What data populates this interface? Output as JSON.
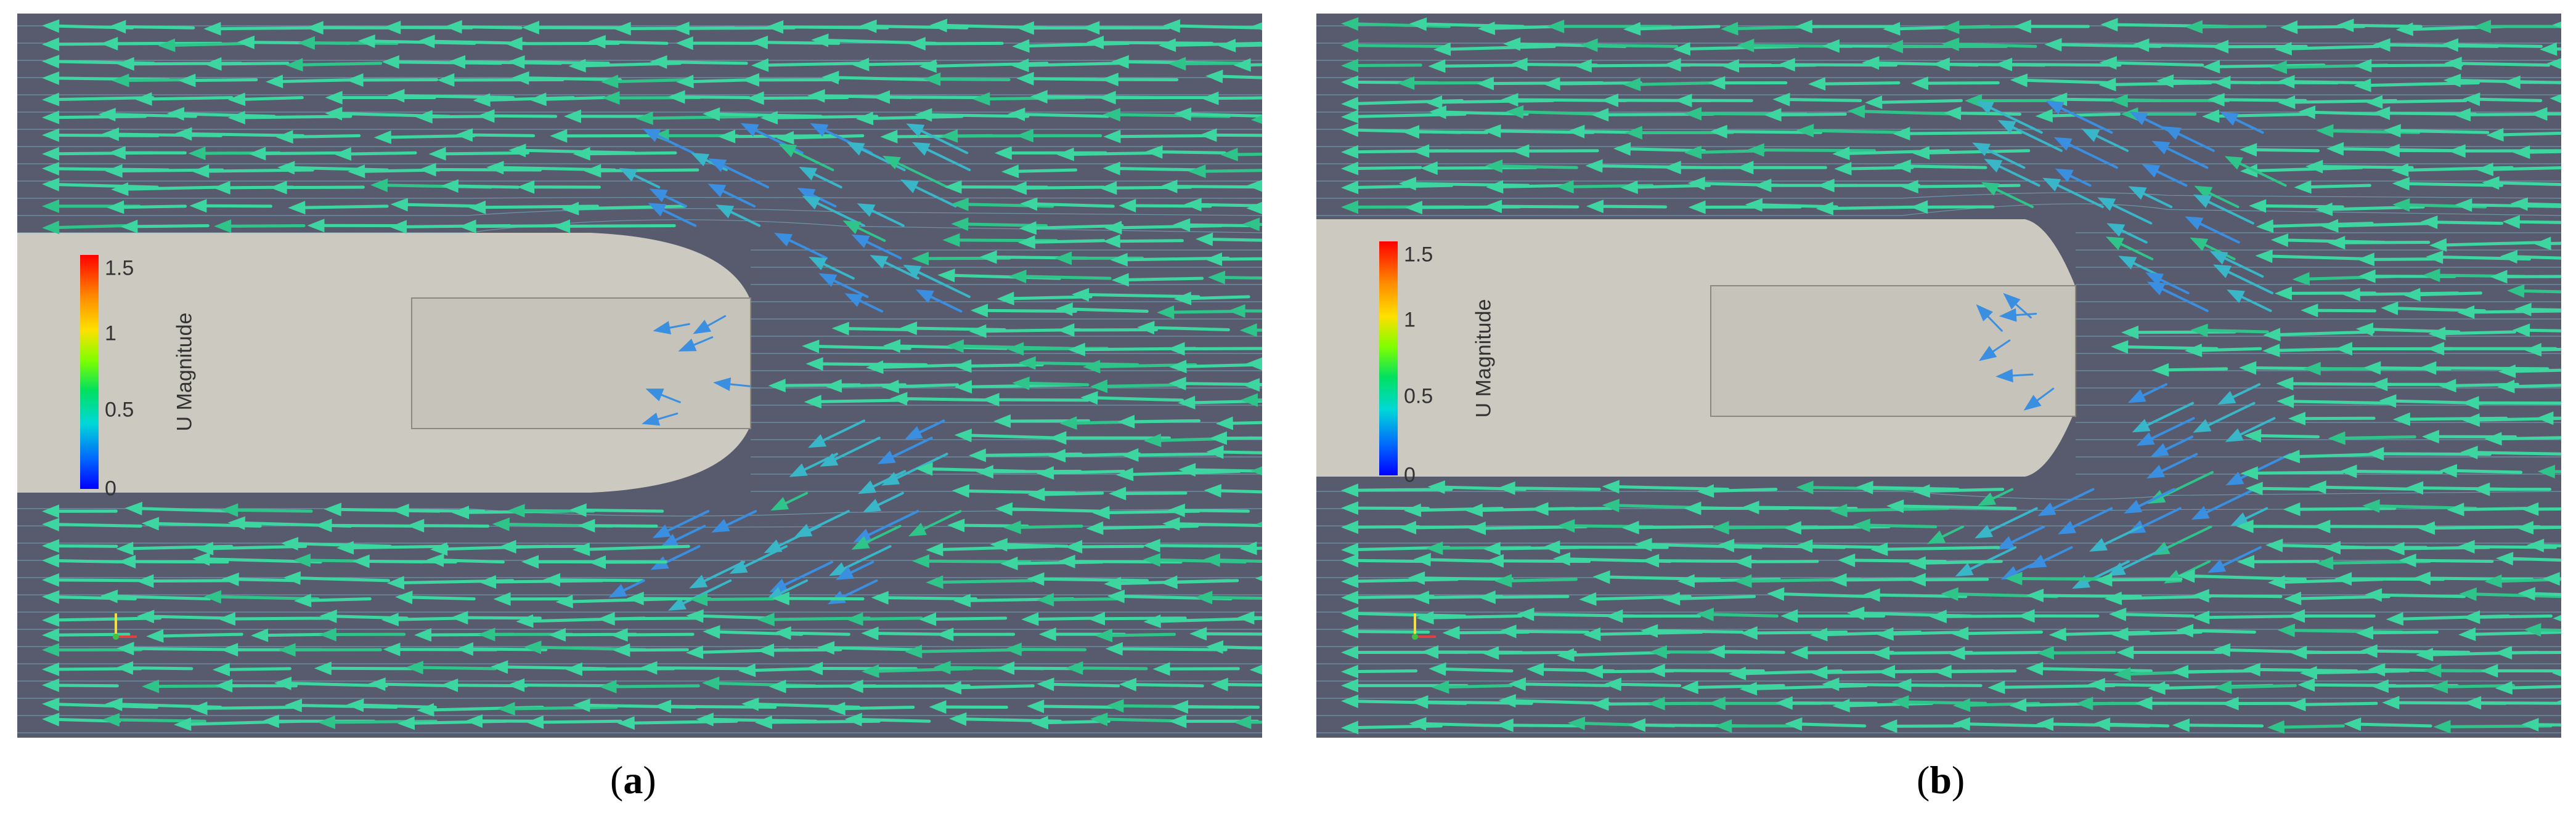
{
  "figure": {
    "panels": [
      {
        "id": "a",
        "label_open": "(",
        "label_letter": "a",
        "label_close": ")",
        "legend_title": "U Magnitude",
        "legend_ticks": [
          "1.5",
          "1",
          "0.5",
          "0"
        ]
      },
      {
        "id": "b",
        "label_open": "(",
        "label_letter": "b",
        "label_close": ")",
        "legend_title": "U Magnitude",
        "legend_ticks": [
          "1.5",
          "1",
          "0.5",
          "0"
        ]
      }
    ]
  },
  "colors": {
    "background": "#585b6e",
    "body": "#ccc9c0",
    "arrow_fast": "#3dd6a0",
    "arrow_slow": "#3a8fe0",
    "streamline": "#7fc8d8"
  }
}
